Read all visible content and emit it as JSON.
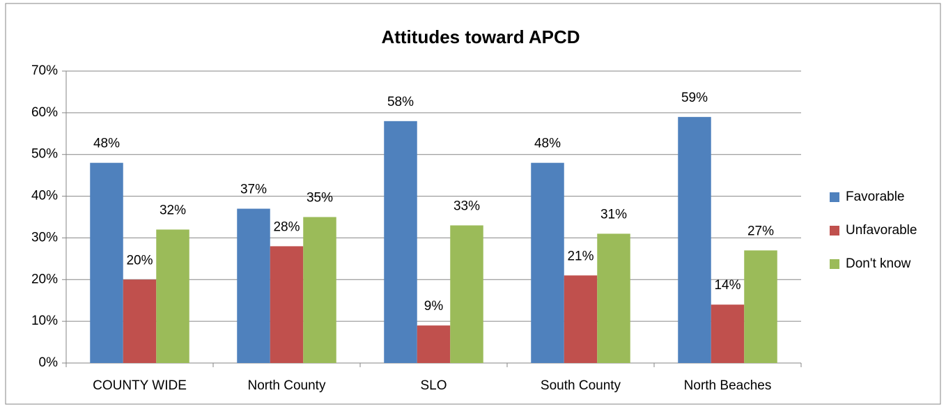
{
  "chart_data": {
    "type": "bar",
    "title": "Attitudes toward APCD",
    "categories": [
      "COUNTY WIDE",
      "North County",
      "SLO",
      "South County",
      "North Beaches"
    ],
    "series": [
      {
        "name": "Favorable",
        "color": "#4f81bd",
        "values": [
          48,
          37,
          58,
          48,
          59
        ],
        "value_labels": [
          "48%",
          "37%",
          "58%",
          "48%",
          "59%"
        ]
      },
      {
        "name": "Unfavorable",
        "color": "#c0504d",
        "values": [
          20,
          28,
          9,
          21,
          14
        ],
        "value_labels": [
          "20%",
          "28%",
          "9%",
          "21%",
          "14%"
        ]
      },
      {
        "name": "Don't know",
        "color": "#9bbb59",
        "values": [
          32,
          35,
          33,
          31,
          27
        ],
        "value_labels": [
          "32%",
          "35%",
          "33%",
          "31%",
          "27%"
        ]
      }
    ],
    "ylim": [
      0,
      70
    ],
    "yticks": [
      {
        "value": 0,
        "label": "0%"
      },
      {
        "value": 10,
        "label": "10%"
      },
      {
        "value": 20,
        "label": "20%"
      },
      {
        "value": 30,
        "label": "30%"
      },
      {
        "value": 40,
        "label": "40%"
      },
      {
        "value": 50,
        "label": "50%"
      },
      {
        "value": 60,
        "label": "60%"
      },
      {
        "value": 70,
        "label": "70%"
      }
    ],
    "grid": true,
    "legend": "right"
  }
}
